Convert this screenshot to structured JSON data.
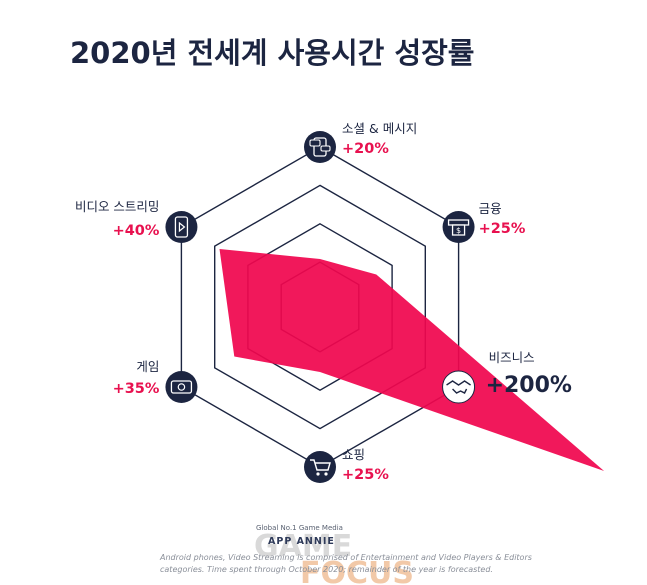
{
  "chart_data": {
    "type": "radar",
    "title": "2020년 전세계 사용시간 성장률",
    "axes": [
      {
        "label": "소셜 & 메시지",
        "value_label": "+20%",
        "value": 20,
        "icon": "chat-phone-icon"
      },
      {
        "label": "금융",
        "value_label": "+25%",
        "value": 25,
        "icon": "atm-money-icon"
      },
      {
        "label": "비즈니스",
        "value_label": "+200%",
        "value": 200,
        "icon": "handshake-icon"
      },
      {
        "label": "쇼핑",
        "value_label": "+25%",
        "value": 25,
        "icon": "shopping-cart-icon"
      },
      {
        "label": "게임",
        "value_label": "+35%",
        "value": 35,
        "icon": "game-phone-icon"
      },
      {
        "label": "비디오 스트리밍",
        "value_label": "+40%",
        "value": 40,
        "icon": "video-phone-icon"
      }
    ],
    "grid": true,
    "colors": {
      "series": "#f0064f",
      "grid": "#1c2541",
      "highlight_text": "#e8114f"
    }
  },
  "watermark": {
    "tagline": "Global No.1 Game Media",
    "brand": "APP ANNIE",
    "logo_text_1": "GAME",
    "logo_text_2": "FOCUS"
  },
  "footnote": {
    "line1": "Android phones, Video Streaming is comprised of Entertainment and Video Players & Editors",
    "line2": "categories. Time spent through October 2020; remainder of the year is forecasted."
  }
}
